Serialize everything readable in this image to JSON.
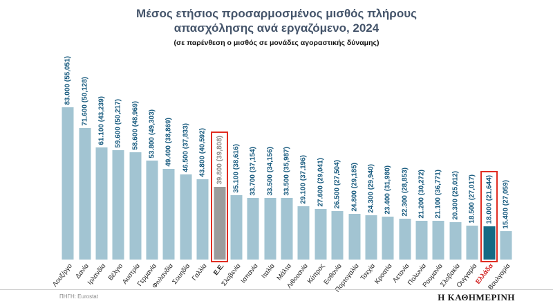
{
  "header": {
    "title": "Μέσος ετήσιος προσαρμοσμένος μισθός πλήρους απασχόλησης ανά εργαζόμενο, 2024",
    "subtitle": "(σε παρένθεση ο μισθός σε μονάδες αγοραστικής δύναμης)"
  },
  "footer": {
    "source": "ΠΗΓΗ: Eurostat",
    "brand": "Η ΚΑΘΗΜΕΡΙΝΗ"
  },
  "colors": {
    "title": "#44546a",
    "bar": "#a2c4d2",
    "bar_eu": "#9c9c9c",
    "bar_greece": "#166a84",
    "value_text": "#175a7e",
    "value_text_eu": "#8c8c8c",
    "category_text": "#222222",
    "category_text_greece": "#d21f1f",
    "highlight_box": "#e02d22"
  },
  "chart_data": {
    "type": "bar",
    "title": "Μέσος ετήσιος προσαρμοσμένος μισθός πλήρους απασχόλησης ανά εργαζόμενο, 2024",
    "subtitle": "(σε παρένθεση ο μισθός σε μονάδες αγοραστικής δύναμης)",
    "xlabel": "",
    "ylabel": "",
    "ylim": [
      0,
      83000
    ],
    "grid": false,
    "legend": false,
    "source": "Eurostat",
    "categories": [
      "Λουξ/ργο",
      "Δανία",
      "Ιρλανδία",
      "Βέλγιο",
      "Αυστρία",
      "Γερμανία",
      "Φινλανδία",
      "Σουηδία",
      "Γαλλία",
      "Ε.Ε.",
      "Σλοβενία",
      "Ισπανία",
      "Ιταλία",
      "Μάλτα",
      "Λιθουανία",
      "Κύπρος",
      "Εσθονία",
      "Πορτογαλία",
      "Τσεχία",
      "Κροατία",
      "Λετονία",
      "Πολωνία",
      "Ρουμανία",
      "Σλοβακία",
      "Ουγγαρία",
      "Ελλάδα",
      "Βουλγαρία"
    ],
    "values": [
      83000,
      71600,
      61100,
      59600,
      58600,
      53800,
      49400,
      46500,
      43800,
      39800,
      35100,
      33700,
      33500,
      33500,
      29100,
      27600,
      26500,
      24800,
      24300,
      23400,
      22300,
      21200,
      21100,
      20300,
      18500,
      18000,
      15400
    ],
    "pps_values": [
      55051,
      50128,
      43239,
      50217,
      48969,
      49303,
      38869,
      37833,
      40592,
      39808,
      38616,
      37154,
      34156,
      35987,
      37196,
      29041,
      27504,
      29185,
      29940,
      31980,
      28853,
      30272,
      36771,
      25012,
      27017,
      21644,
      27059
    ],
    "value_labels": [
      "83.000 (55,051)",
      "71.600 (50,128)",
      "61.100 (43,239)",
      "59.600 (50,217)",
      "58.600 (48,969)",
      "53.800 (49,303)",
      "49.400 (38,869)",
      "46.500 (37,833)",
      "43.800 (40,592)",
      "39.800 (39,808)",
      "35.100 (38,616)",
      "33.700 (37,154)",
      "33.500 (34,156)",
      "33.500 (35,987)",
      "29.100 (37,196)",
      "27.600 (29,041)",
      "26.500 (27,504)",
      "24.800 (29,185)",
      "24.300 (29,940)",
      "23.400 (31,980)",
      "22.300 (28,853)",
      "21.200 (30,272)",
      "21.100 (36,771)",
      "20.300 (25,012)",
      "18.500 (27,017)",
      "18.000 (21,644)",
      "15.400 (27,059)"
    ],
    "eu_index": 9,
    "greece_index": 25
  }
}
